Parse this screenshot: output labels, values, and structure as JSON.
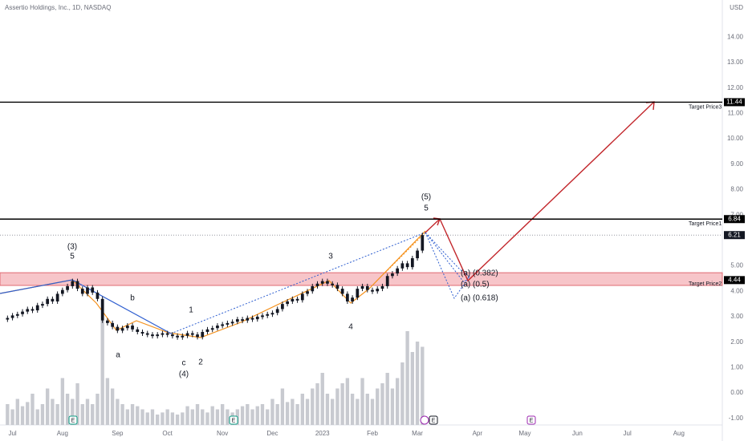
{
  "chart_data": {
    "type": "candlestick",
    "title": "Assertio Holdings, Inc., 1D, NASDAQ",
    "currency": "USD",
    "closes": [
      2.95,
      3.05,
      3.1,
      3.2,
      3.3,
      3.25,
      3.45,
      3.5,
      3.7,
      3.6,
      3.9,
      4.05,
      4.2,
      4.4,
      4.1,
      3.9,
      4.15,
      3.95,
      3.7,
      2.85,
      2.75,
      2.6,
      2.45,
      2.55,
      2.65,
      2.5,
      2.4,
      2.35,
      2.3,
      2.25,
      2.3,
      2.35,
      2.3,
      2.25,
      2.2,
      2.25,
      2.35,
      2.3,
      2.2,
      2.4,
      2.5,
      2.55,
      2.65,
      2.7,
      2.75,
      2.8,
      2.9,
      2.85,
      2.95,
      2.9,
      3.0,
      3.05,
      3.1,
      3.15,
      3.3,
      3.5,
      3.6,
      3.7,
      3.65,
      3.9,
      4.0,
      4.2,
      4.3,
      4.4,
      4.3,
      4.25,
      4.1,
      3.9,
      3.6,
      3.75,
      4.1,
      4.2,
      4.05,
      4.0,
      4.1,
      4.2,
      4.6,
      4.7,
      4.9,
      5.1,
      4.95,
      5.3,
      5.6,
      6.21
    ],
    "candle_color": "#131722",
    "volume": [
      20,
      15,
      25,
      18,
      22,
      30,
      15,
      20,
      35,
      25,
      20,
      45,
      30,
      25,
      40,
      20,
      25,
      20,
      30,
      100,
      45,
      35,
      25,
      20,
      15,
      20,
      18,
      15,
      12,
      15,
      10,
      12,
      15,
      12,
      10,
      12,
      18,
      15,
      20,
      15,
      12,
      18,
      15,
      20,
      15,
      12,
      15,
      18,
      20,
      15,
      18,
      20,
      15,
      25,
      20,
      35,
      22,
      25,
      20,
      30,
      25,
      35,
      40,
      50,
      30,
      25,
      35,
      40,
      45,
      30,
      25,
      45,
      30,
      25,
      35,
      40,
      50,
      35,
      45,
      60,
      90,
      70,
      80,
      75
    ],
    "volume_color": "#c8cad0",
    "vlim": [
      0,
      100
    ],
    "xlim": [
      -1.5,
      143
    ],
    "xticks": [
      {
        "value": 1,
        "label": "Jul"
      },
      {
        "value": 11,
        "label": "Aug"
      },
      {
        "value": 22,
        "label": "Sep"
      },
      {
        "value": 32,
        "label": "Oct"
      },
      {
        "value": 43,
        "label": "Nov"
      },
      {
        "value": 53,
        "label": "Dec"
      },
      {
        "value": 63,
        "label": "2023"
      },
      {
        "value": 73,
        "label": "Feb"
      },
      {
        "value": 82,
        "label": "Mar"
      },
      {
        "value": 94,
        "label": "Apr"
      },
      {
        "value": 103.5,
        "label": "May"
      },
      {
        "value": 114,
        "label": "Jun"
      },
      {
        "value": 124,
        "label": "Jul"
      },
      {
        "value": 134.3,
        "label": "Aug"
      }
    ],
    "ylim": [
      -1.26,
      15.46
    ],
    "yticks": [
      {
        "value": 14,
        "label": "14.00"
      },
      {
        "value": 13,
        "label": "13.00"
      },
      {
        "value": 12,
        "label": "12.00"
      },
      {
        "value": 11,
        "label": "11.00"
      },
      {
        "value": 10,
        "label": "10.00"
      },
      {
        "value": 9,
        "label": "9.00"
      },
      {
        "value": 8,
        "label": "8.00"
      },
      {
        "value": 7,
        "label": "7.00"
      },
      {
        "value": 5,
        "label": "5.00"
      },
      {
        "value": 4,
        "label": "4.00"
      },
      {
        "value": 3,
        "label": "3.00"
      },
      {
        "value": 2,
        "label": "2.00"
      },
      {
        "value": 1,
        "label": "1.00"
      },
      {
        "value": 0,
        "label": "0.00"
      },
      {
        "value": -1,
        "label": "-1.00"
      }
    ],
    "grid": false,
    "levels": [
      {
        "name": "Target Price3",
        "value": 11.44,
        "label": "11.44"
      },
      {
        "name": "Target Price1",
        "value": 6.84,
        "label": "6.84"
      },
      {
        "name": "Target Price2",
        "value": 4.44,
        "label": "4.44"
      }
    ],
    "last_price": {
      "value": 6.21,
      "label": "6.21"
    },
    "zone": [
      4.23,
      4.73
    ],
    "zone_color": "#f7c5c9",
    "annotations": [
      {
        "text": "(3)",
        "color": "#2f5fd0"
      },
      {
        "text": "5",
        "color": "#f5921e"
      },
      {
        "text": "b",
        "color": "#f5921e"
      },
      {
        "text": "a",
        "color": "#f5921e"
      },
      {
        "text": "1",
        "color": "#f5921e"
      },
      {
        "text": "c",
        "color": "#f5921e"
      },
      {
        "text": "2",
        "color": "#f5921e"
      },
      {
        "text": "(4)",
        "color": "#2f5fd0"
      },
      {
        "text": "3",
        "color": "#f5921e"
      },
      {
        "text": "4",
        "color": "#f5921e"
      },
      {
        "text": "(5)",
        "color": "#2f5fd0"
      },
      {
        "text": "5",
        "color": "#f5921e"
      },
      {
        "text": "(a) (0.382)",
        "color": "#2f5fd0"
      },
      {
        "text": "(a) (0.5)",
        "color": "#2f5fd0"
      },
      {
        "text": "(a) (0.618)",
        "color": "#2f5fd0"
      }
    ],
    "events": [
      "E",
      "E",
      "E",
      "E"
    ]
  }
}
